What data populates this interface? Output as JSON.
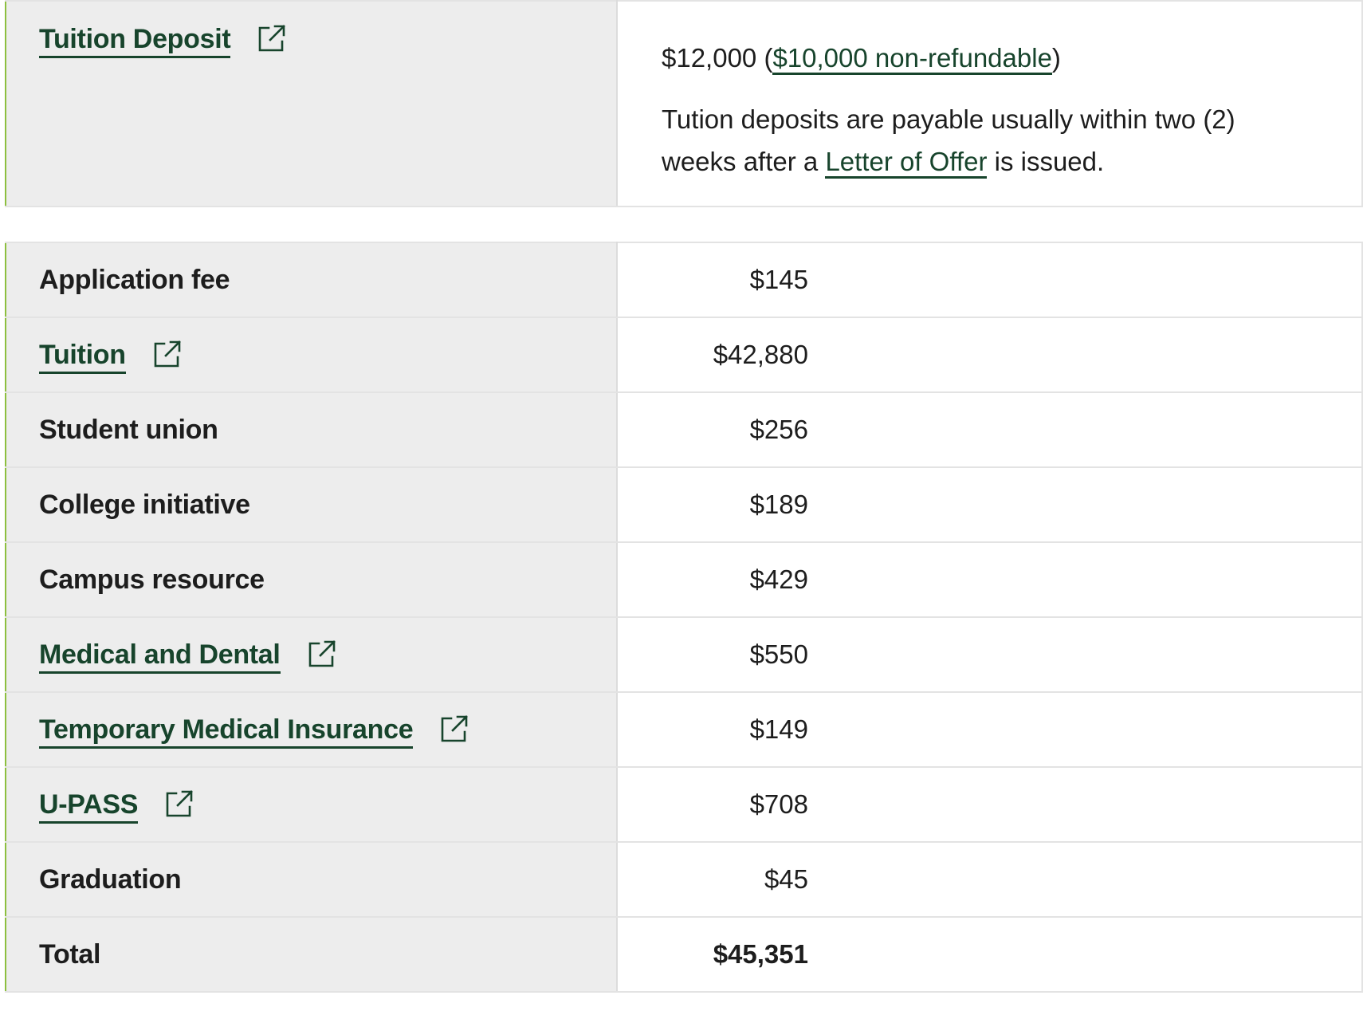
{
  "deposit": {
    "label": "Tuition Deposit",
    "amount_prefix": "$12,000 (",
    "nonrefundable_link": "$10,000 non-refundable",
    "amount_suffix": ")",
    "note_part1": "Tution deposits are payable usually within two (2) weeks after a ",
    "letter_link": "Letter of Offer",
    "note_part2": " is issued."
  },
  "fees": [
    {
      "label": "Application fee",
      "amount": "$145",
      "link": false
    },
    {
      "label": "Tuition",
      "amount": "$42,880",
      "link": true
    },
    {
      "label": "Student union",
      "amount": "$256",
      "link": false
    },
    {
      "label": "College initiative",
      "amount": "$189",
      "link": false
    },
    {
      "label": "Campus resource",
      "amount": "$429",
      "link": false
    },
    {
      "label": "Medical and Dental",
      "amount": "$550",
      "link": true
    },
    {
      "label": "Temporary Medical Insurance",
      "amount": "$149",
      "link": true
    },
    {
      "label": "U-PASS",
      "amount": "$708",
      "link": true
    },
    {
      "label": "Graduation",
      "amount": "$45",
      "link": false
    },
    {
      "label": "Total",
      "amount": "$45,351",
      "link": false
    }
  ],
  "icons": {
    "external": "external-link-icon"
  },
  "colors": {
    "link": "#17442c",
    "accent": "#8dbf3f",
    "label_bg": "#ededed"
  }
}
